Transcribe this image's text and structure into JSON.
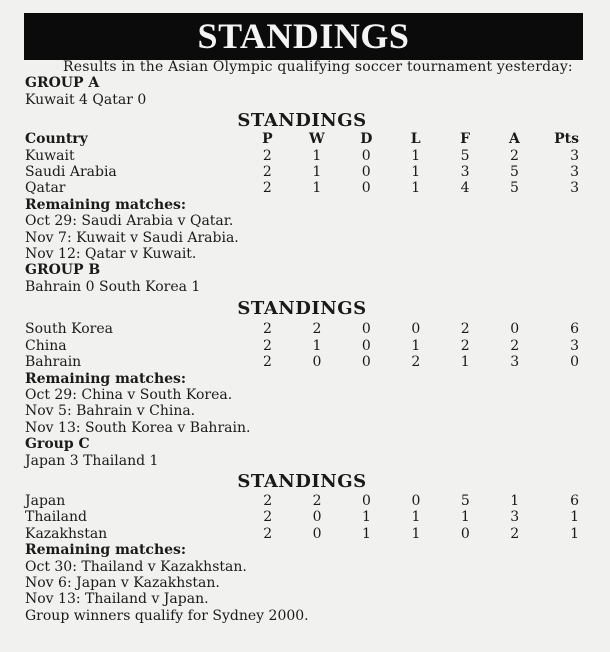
{
  "title": "STANDINGS",
  "intro": "Results in the Asian Olympic qualifying soccer tournament yesterday:",
  "columns": [
    "Country",
    "P",
    "W",
    "D",
    "L",
    "F",
    "A",
    "Pts"
  ],
  "groups": [
    {
      "name": "GROUP A",
      "result": "Kuwait 4 Qatar 0",
      "standings_label": "STANDINGS",
      "rows": [
        [
          "Kuwait",
          "2",
          "1",
          "0",
          "1",
          "5",
          "2",
          "3"
        ],
        [
          "Saudi Arabia",
          "2",
          "1",
          "0",
          "1",
          "3",
          "5",
          "3"
        ],
        [
          "Qatar",
          "2",
          "1",
          "0",
          "1",
          "4",
          "5",
          "3"
        ]
      ],
      "remaining_label": "Remaining matches:",
      "remaining": [
        "Oct 29: Saudi Arabia v Qatar.",
        "Nov 7: Kuwait v Saudi Arabia.",
        "Nov 12: Qatar v Kuwait."
      ]
    },
    {
      "name": "GROUP B",
      "result": "Bahrain 0 South Korea 1",
      "standings_label": "STANDINGS",
      "rows": [
        [
          "South Korea",
          "2",
          "2",
          "0",
          "0",
          "2",
          "0",
          "6"
        ],
        [
          "China",
          "2",
          "1",
          "0",
          "1",
          "2",
          "2",
          "3"
        ],
        [
          "Bahrain",
          "2",
          "0",
          "0",
          "2",
          "1",
          "3",
          "0"
        ]
      ],
      "remaining_label": "Remaining matches:",
      "remaining": [
        "Oct 29: China v South Korea.",
        "Nov 5: Bahrain v China.",
        "Nov 13: South Korea v Bahrain."
      ]
    },
    {
      "name": "Group C",
      "result": "Japan 3 Thailand 1",
      "standings_label": "STANDINGS",
      "rows": [
        [
          "Japan",
          "2",
          "2",
          "0",
          "0",
          "5",
          "1",
          "6"
        ],
        [
          "Thailand",
          "2",
          "0",
          "1",
          "1",
          "1",
          "3",
          "1"
        ],
        [
          "Kazakhstan",
          "2",
          "0",
          "1",
          "1",
          "0",
          "2",
          "1"
        ]
      ],
      "remaining_label": "Remaining matches:",
      "remaining": [
        "Oct 30: Thailand v Kazakhstan.",
        "Nov 6: Japan v Kazakhstan.",
        "Nov 13: Thailand v Japan."
      ]
    }
  ],
  "footer": "Group winners qualify for Sydney 2000."
}
